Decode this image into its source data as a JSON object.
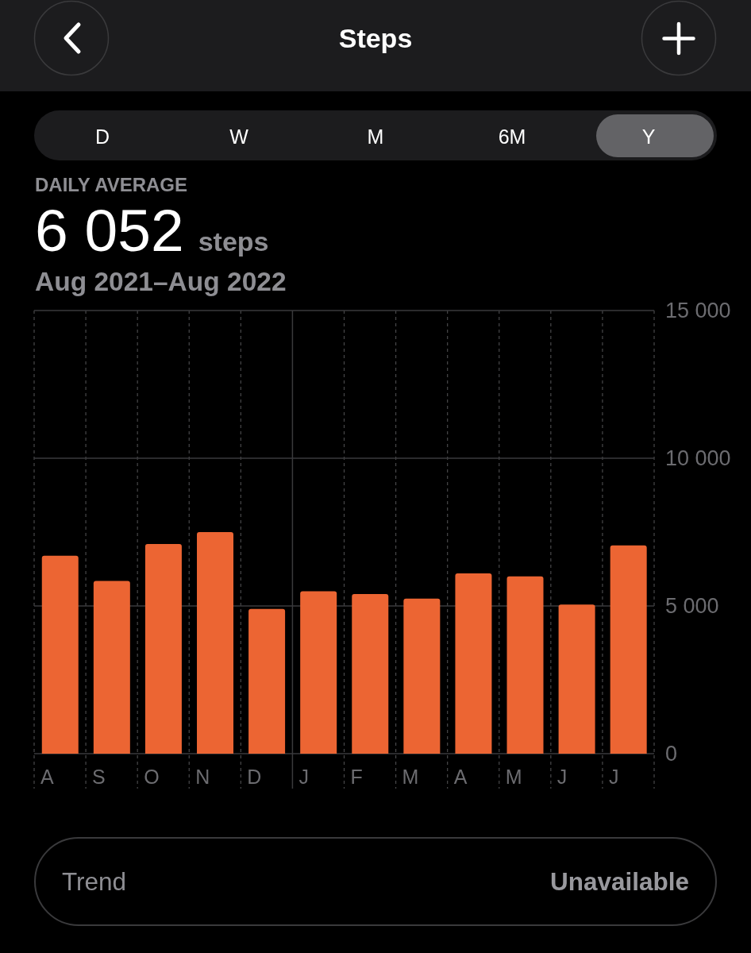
{
  "chart_data": {
    "type": "bar",
    "title": "Steps",
    "subtitle": "Aug 2021–Aug 2022",
    "annotations": [
      "D",
      "W",
      "M",
      "6M",
      "Y",
      "DAILY AVERAGE",
      "6 052",
      "steps",
      "Trend",
      "Unavailable"
    ],
    "categories": [
      "A",
      "S",
      "O",
      "N",
      "D",
      "J",
      "F",
      "M",
      "A",
      "M",
      "J",
      "J"
    ],
    "values": [
      6700,
      5850,
      7100,
      7500,
      4900,
      5500,
      5400,
      5250,
      6100,
      6000,
      5050,
      7050
    ],
    "color": "#ec6533",
    "ylim": [
      0,
      15000
    ],
    "yticks": [
      0,
      {
        "value": 5000,
        "label": "5 000"
      },
      {
        "value": 10000,
        "label": "10 000"
      },
      {
        "value": 15000,
        "label": "15 000"
      }
    ],
    "grid": true,
    "ref_lines": [
      {
        "axis": "x",
        "value": "J",
        "line_style": "solid",
        "color": "#3a3a3c"
      }
    ]
  }
}
